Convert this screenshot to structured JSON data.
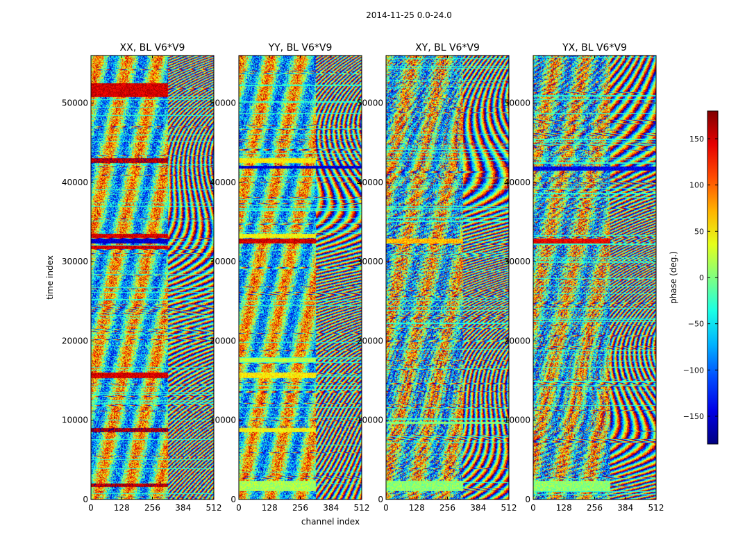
{
  "figure_title": "2014-11-25 0.0-24.0",
  "chart_data": {
    "type": "heatmap",
    "suptitle": "2014-11-25 0.0-24.0",
    "xlabel": "channel index",
    "ylabel": "time index",
    "xlim": [
      0,
      512
    ],
    "ylim": [
      0,
      56000
    ],
    "x_ticks": [
      0,
      128,
      256,
      384,
      512
    ],
    "y_ticks": [
      0,
      10000,
      20000,
      30000,
      40000,
      50000
    ],
    "panels": [
      {
        "title": "XX, BL V6*V9",
        "bands": [
          {
            "t0": 1500,
            "t1": 2000,
            "x1": 320,
            "phase": 160
          },
          {
            "t0": 8500,
            "t1": 9000,
            "x1": 320,
            "phase": 165
          },
          {
            "t0": 15300,
            "t1": 16000,
            "x1": 320,
            "phase": 150
          },
          {
            "t0": 31600,
            "t1": 32000,
            "x1": 320,
            "phase": 150
          },
          {
            "t0": 32300,
            "t1": 32900,
            "x1": 320,
            "phase": -150
          },
          {
            "t0": 33000,
            "t1": 33500,
            "x1": 320,
            "phase": 150
          },
          {
            "t0": 42500,
            "t1": 43100,
            "x1": 320,
            "phase": 160
          },
          {
            "t0": 50800,
            "t1": 52500,
            "x1": 320,
            "phase": 150
          }
        ]
      },
      {
        "title": "YY, BL V6*V9",
        "bands": [
          {
            "t0": 1000,
            "t1": 2300,
            "x1": 320,
            "phase": 15
          },
          {
            "t0": 8500,
            "t1": 9000,
            "x1": 320,
            "phase": 45
          },
          {
            "t0": 15300,
            "t1": 16000,
            "x1": 320,
            "phase": 50
          },
          {
            "t0": 17300,
            "t1": 17800,
            "x1": 320,
            "phase": 20
          },
          {
            "t0": 32300,
            "t1": 32900,
            "x1": 320,
            "phase": 150
          },
          {
            "t0": 33000,
            "t1": 33500,
            "x1": 320,
            "phase": 45
          },
          {
            "t0": 41800,
            "t1": 42100,
            "x1": 512,
            "phase": -150
          },
          {
            "t0": 42500,
            "t1": 43100,
            "x1": 320,
            "phase": 50
          }
        ]
      },
      {
        "title": "XY, BL V6*V9",
        "bands": [
          {
            "t0": 1000,
            "t1": 2300,
            "x1": 320,
            "phase": 5
          },
          {
            "t0": 32300,
            "t1": 32900,
            "x1": 320,
            "phase": 70
          },
          {
            "t0": 9500,
            "t1": 9800,
            "x1": 512,
            "phase": 0
          }
        ]
      },
      {
        "title": "YX, BL V6*V9",
        "bands": [
          {
            "t0": 1000,
            "t1": 2300,
            "x1": 320,
            "phase": 5
          },
          {
            "t0": 32300,
            "t1": 32900,
            "x1": 320,
            "phase": 140
          },
          {
            "t0": 41500,
            "t1": 42000,
            "x1": 512,
            "phase": -140
          }
        ]
      }
    ],
    "colorbar": {
      "label": "phase (deg.)",
      "range": [
        -180,
        180
      ],
      "ticks": [
        150,
        100,
        50,
        0,
        -50,
        -100,
        -150
      ],
      "colormap": "jet"
    }
  }
}
